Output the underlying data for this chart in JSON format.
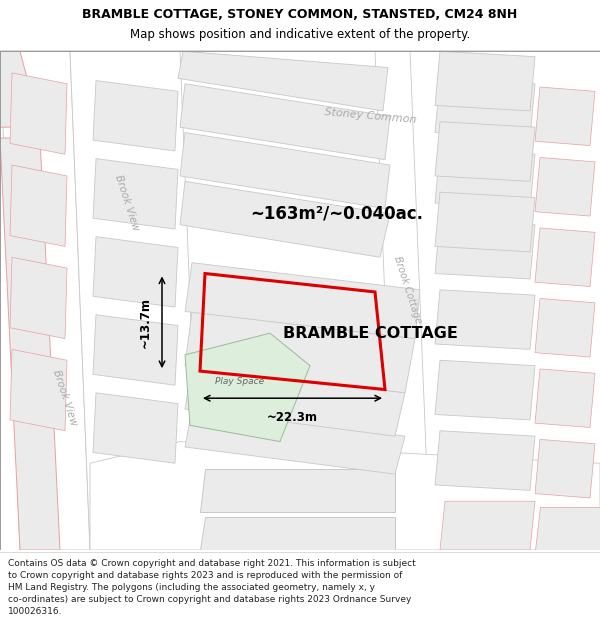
{
  "title_line1": "BRAMBLE COTTAGE, STONEY COMMON, STANSTED, CM24 8NH",
  "title_line2": "Map shows position and indicative extent of the property.",
  "property_label": "BRAMBLE COTTAGE",
  "area_label": "~163m²/~0.040ac.",
  "dim_width": "~22.3m",
  "dim_height": "~13.7m",
  "play_space_label": "Play Space",
  "road_label_brook_view_upper": "Brook View",
  "road_label_brook_view_lower": "Brook View",
  "road_label_stoney_common": "Stoney Common",
  "road_label_brook_cottage": "Brook Cottage",
  "footer_lines": [
    "Contains OS data © Crown copyright and database right 2021. This information is subject",
    "to Crown copyright and database rights 2023 and is reproduced with the permission of",
    "HM Land Registry. The polygons (including the associated geometry, namely x, y",
    "co-ordinates) are subject to Crown copyright and database rights 2023 Ordnance Survey",
    "100026316."
  ],
  "map_bg": "#ffffff",
  "parcel_fill": "#ebebeb",
  "parcel_edge": "#e8a0a0",
  "road_line_color": "#c8c8c8",
  "road_line_thin": "#e8a0a0",
  "highlight_red": "#dd0000",
  "playspace_fill": "#ddeedd",
  "playspace_edge": "#99bb99",
  "text_dark": "#000000",
  "text_road": "#aaaaaa",
  "title_fontsize": 9.0,
  "subtitle_fontsize": 8.5,
  "label_fontsize": 11.5,
  "area_fontsize": 12.0,
  "footer_fontsize": 6.5
}
